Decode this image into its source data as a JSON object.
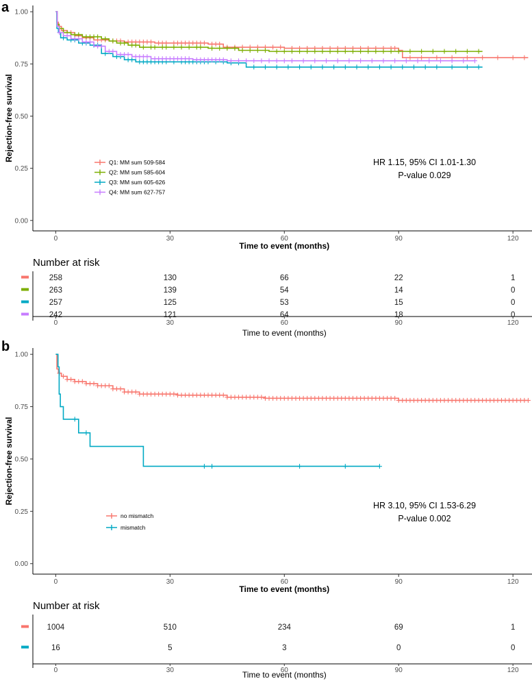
{
  "chart_data": [
    {
      "panel_label": "a",
      "type": "line",
      "subtype": "kaplan-meier",
      "ylabel": "Rejection-free survival",
      "xlabel": "Time to event (months)",
      "xlim": [
        -6,
        125
      ],
      "ylim": [
        -0.05,
        1.03
      ],
      "xticks": [
        0,
        30,
        60,
        90,
        120
      ],
      "yticks": [
        0.0,
        0.25,
        0.5,
        0.75,
        1.0
      ],
      "ytick_labels": [
        "0.00",
        "0.25",
        "0.50",
        "0.75",
        "1.00"
      ],
      "legend_position": "lower-left",
      "series": [
        {
          "name": "Q1: MM sum 509-584",
          "color": "#F8766D",
          "steps": [
            [
              0,
              1.0
            ],
            [
              0.3,
              0.95
            ],
            [
              0.7,
              0.93
            ],
            [
              1.5,
              0.91
            ],
            [
              3,
              0.9
            ],
            [
              5,
              0.885
            ],
            [
              7,
              0.875
            ],
            [
              10,
              0.865
            ],
            [
              14,
              0.86
            ],
            [
              18,
              0.855
            ],
            [
              26,
              0.85
            ],
            [
              40,
              0.845
            ],
            [
              44,
              0.83
            ],
            [
              60,
              0.825
            ],
            [
              90,
              0.815
            ],
            [
              91,
              0.78
            ],
            [
              124,
              0.78
            ]
          ],
          "censor_times": [
            2,
            4,
            6,
            8,
            9,
            11,
            12,
            13,
            15,
            16,
            17,
            19,
            20,
            21,
            22,
            23,
            24,
            25,
            27,
            28,
            29,
            31,
            32,
            33,
            34,
            35,
            36,
            37,
            38,
            39,
            41,
            42,
            43,
            45,
            47,
            49,
            51,
            53,
            55,
            57,
            59,
            62,
            64,
            66,
            68,
            70,
            72,
            74,
            76,
            78,
            80,
            82,
            84,
            86,
            88,
            89,
            93,
            96,
            100,
            104,
            108,
            112,
            116,
            120,
            123
          ]
        },
        {
          "name": "Q2: MM sum 585-604",
          "color": "#7CAE00",
          "steps": [
            [
              0,
              1.0
            ],
            [
              0.4,
              0.94
            ],
            [
              0.9,
              0.92
            ],
            [
              2,
              0.9
            ],
            [
              4,
              0.89
            ],
            [
              7,
              0.88
            ],
            [
              12,
              0.87
            ],
            [
              14,
              0.86
            ],
            [
              16,
              0.85
            ],
            [
              19,
              0.84
            ],
            [
              22,
              0.83
            ],
            [
              40,
              0.825
            ],
            [
              48,
              0.815
            ],
            [
              56,
              0.81
            ],
            [
              112,
              0.81
            ]
          ],
          "censor_times": [
            1,
            3,
            5,
            6,
            8,
            9,
            10,
            11,
            13,
            15,
            17,
            18,
            20,
            21,
            23,
            25,
            26,
            28,
            29,
            31,
            33,
            35,
            37,
            38,
            41,
            43,
            45,
            47,
            49,
            51,
            53,
            55,
            58,
            60,
            62,
            64,
            66,
            68,
            70,
            72,
            74,
            76,
            78,
            80,
            82,
            84,
            86,
            88,
            90,
            93,
            96,
            99,
            102,
            105,
            108,
            111
          ]
        },
        {
          "name": "Q3: MM sum 605-626",
          "color": "#00A9C4",
          "steps": [
            [
              0,
              1.0
            ],
            [
              0.3,
              0.92
            ],
            [
              0.7,
              0.9
            ],
            [
              1.3,
              0.875
            ],
            [
              3,
              0.865
            ],
            [
              6,
              0.85
            ],
            [
              9,
              0.84
            ],
            [
              12,
              0.8
            ],
            [
              15,
              0.785
            ],
            [
              18,
              0.77
            ],
            [
              21,
              0.76
            ],
            [
              45,
              0.755
            ],
            [
              50,
              0.735
            ],
            [
              112,
              0.735
            ]
          ],
          "censor_times": [
            2,
            4,
            5,
            7,
            8,
            10,
            11,
            13,
            16,
            17,
            19,
            20,
            22,
            23,
            24,
            25,
            26,
            27,
            28,
            29,
            31,
            33,
            34,
            35,
            36,
            37,
            38,
            39,
            40,
            42,
            44,
            46,
            48,
            52,
            55,
            58,
            61,
            64,
            67,
            70,
            73,
            76,
            79,
            82,
            85,
            88,
            91,
            94,
            97,
            100,
            104,
            108,
            111
          ]
        },
        {
          "name": "Q4: MM sum 627-757",
          "color": "#C77CFF",
          "steps": [
            [
              0,
              1.0
            ],
            [
              0.4,
              0.93
            ],
            [
              0.9,
              0.9
            ],
            [
              2,
              0.885
            ],
            [
              4,
              0.87
            ],
            [
              7,
              0.855
            ],
            [
              10,
              0.835
            ],
            [
              13,
              0.81
            ],
            [
              16,
              0.795
            ],
            [
              20,
              0.785
            ],
            [
              25,
              0.775
            ],
            [
              36,
              0.77
            ],
            [
              45,
              0.765
            ],
            [
              110,
              0.765
            ]
          ],
          "censor_times": [
            1,
            3,
            5,
            6,
            8,
            9,
            11,
            12,
            14,
            15,
            17,
            18,
            19,
            21,
            22,
            23,
            24,
            26,
            27,
            28,
            29,
            30,
            31,
            32,
            33,
            34,
            35,
            37,
            38,
            39,
            40,
            41,
            42,
            43,
            44,
            46,
            48,
            50,
            52,
            54,
            56,
            58,
            60,
            62,
            65,
            68,
            71,
            74,
            77,
            80,
            83,
            86,
            89,
            92,
            95,
            98,
            101,
            104,
            107,
            110
          ]
        }
      ],
      "annotation": {
        "line1": "HR 1.15, 95% CI 1.01-1.30",
        "line2": "P-value 0.029"
      },
      "risk_table": {
        "title": "Number at risk",
        "xlabel": "Time to event (months)",
        "times": [
          0,
          30,
          60,
          90,
          120
        ],
        "time_labels": [
          "0",
          "30",
          "60",
          "90",
          "120"
        ],
        "rows": [
          {
            "color": "#F8766D",
            "values": [
              "258",
              "130",
              "66",
              "22",
              "1"
            ]
          },
          {
            "color": "#7CAE00",
            "values": [
              "263",
              "139",
              "54",
              "14",
              "0"
            ]
          },
          {
            "color": "#00A9C4",
            "values": [
              "257",
              "125",
              "53",
              "15",
              "0"
            ]
          },
          {
            "color": "#C77CFF",
            "values": [
              "242",
              "121",
              "64",
              "18",
              "0"
            ]
          }
        ]
      }
    },
    {
      "panel_label": "b",
      "type": "line",
      "subtype": "kaplan-meier",
      "ylabel": "Rejection-free survival",
      "xlabel": "Time to event (months)",
      "xlim": [
        -6,
        125
      ],
      "ylim": [
        -0.05,
        1.03
      ],
      "xticks": [
        0,
        30,
        60,
        90,
        120
      ],
      "yticks": [
        0.0,
        0.25,
        0.5,
        0.75,
        1.0
      ],
      "ytick_labels": [
        "0.00",
        "0.25",
        "0.50",
        "0.75",
        "1.00"
      ],
      "legend_position": "lower-left",
      "series": [
        {
          "name": "no mismatch",
          "color": "#F8766D",
          "steps": [
            [
              0,
              1.0
            ],
            [
              0.3,
              0.93
            ],
            [
              0.7,
              0.91
            ],
            [
              1.5,
              0.895
            ],
            [
              3,
              0.88
            ],
            [
              5,
              0.87
            ],
            [
              8,
              0.86
            ],
            [
              11,
              0.85
            ],
            [
              15,
              0.835
            ],
            [
              18,
              0.82
            ],
            [
              22,
              0.81
            ],
            [
              32,
              0.805
            ],
            [
              45,
              0.795
            ],
            [
              55,
              0.79
            ],
            [
              90,
              0.78
            ],
            [
              124,
              0.78
            ]
          ],
          "censor_times": [
            1,
            2,
            3,
            4,
            5,
            6,
            7,
            8,
            9,
            10,
            11,
            12,
            13,
            14,
            15,
            16,
            17,
            18,
            19,
            20,
            21,
            22,
            23,
            24,
            25,
            26,
            27,
            28,
            29,
            30,
            31,
            32,
            33,
            34,
            35,
            36,
            37,
            38,
            39,
            40,
            41,
            42,
            43,
            44,
            45,
            46,
            47,
            48,
            49,
            50,
            51,
            52,
            53,
            54,
            55,
            56,
            57,
            58,
            59,
            60,
            61,
            62,
            63,
            64,
            65,
            66,
            67,
            68,
            69,
            70,
            71,
            72,
            73,
            74,
            75,
            76,
            77,
            78,
            79,
            80,
            81,
            82,
            83,
            84,
            85,
            86,
            87,
            88,
            89,
            90,
            91,
            92,
            93,
            94,
            95,
            96,
            97,
            98,
            99,
            100,
            101,
            102,
            103,
            104,
            105,
            106,
            107,
            108,
            109,
            110,
            111,
            112,
            113,
            114,
            115,
            116,
            117,
            118,
            119,
            120,
            121,
            122,
            123,
            124
          ]
        },
        {
          "name": "mismatch",
          "color": "#00A9C4",
          "steps": [
            [
              0,
              1.0
            ],
            [
              0.6,
              0.94
            ],
            [
              0.9,
              0.81
            ],
            [
              1.2,
              0.75
            ],
            [
              2,
              0.69
            ],
            [
              6,
              0.625
            ],
            [
              9,
              0.56
            ],
            [
              23,
              0.465
            ],
            [
              85,
              0.465
            ]
          ],
          "censor_times": [
            5,
            8,
            39,
            41,
            64,
            76,
            85
          ]
        }
      ],
      "annotation": {
        "line1": "HR 3.10, 95% CI 1.53-6.29",
        "line2": "P-value 0.002"
      },
      "risk_table": {
        "title": "Number at risk",
        "xlabel": "Time to event (months)",
        "times": [
          0,
          30,
          60,
          90,
          120
        ],
        "time_labels": [
          "0",
          "30",
          "60",
          "90",
          "120"
        ],
        "rows": [
          {
            "color": "#F8766D",
            "values": [
              "1004",
              "510",
              "234",
              "69",
              "1"
            ]
          },
          {
            "color": "#00A9C4",
            "values": [
              "16",
              "5",
              "3",
              "0",
              "0"
            ]
          }
        ]
      }
    }
  ]
}
